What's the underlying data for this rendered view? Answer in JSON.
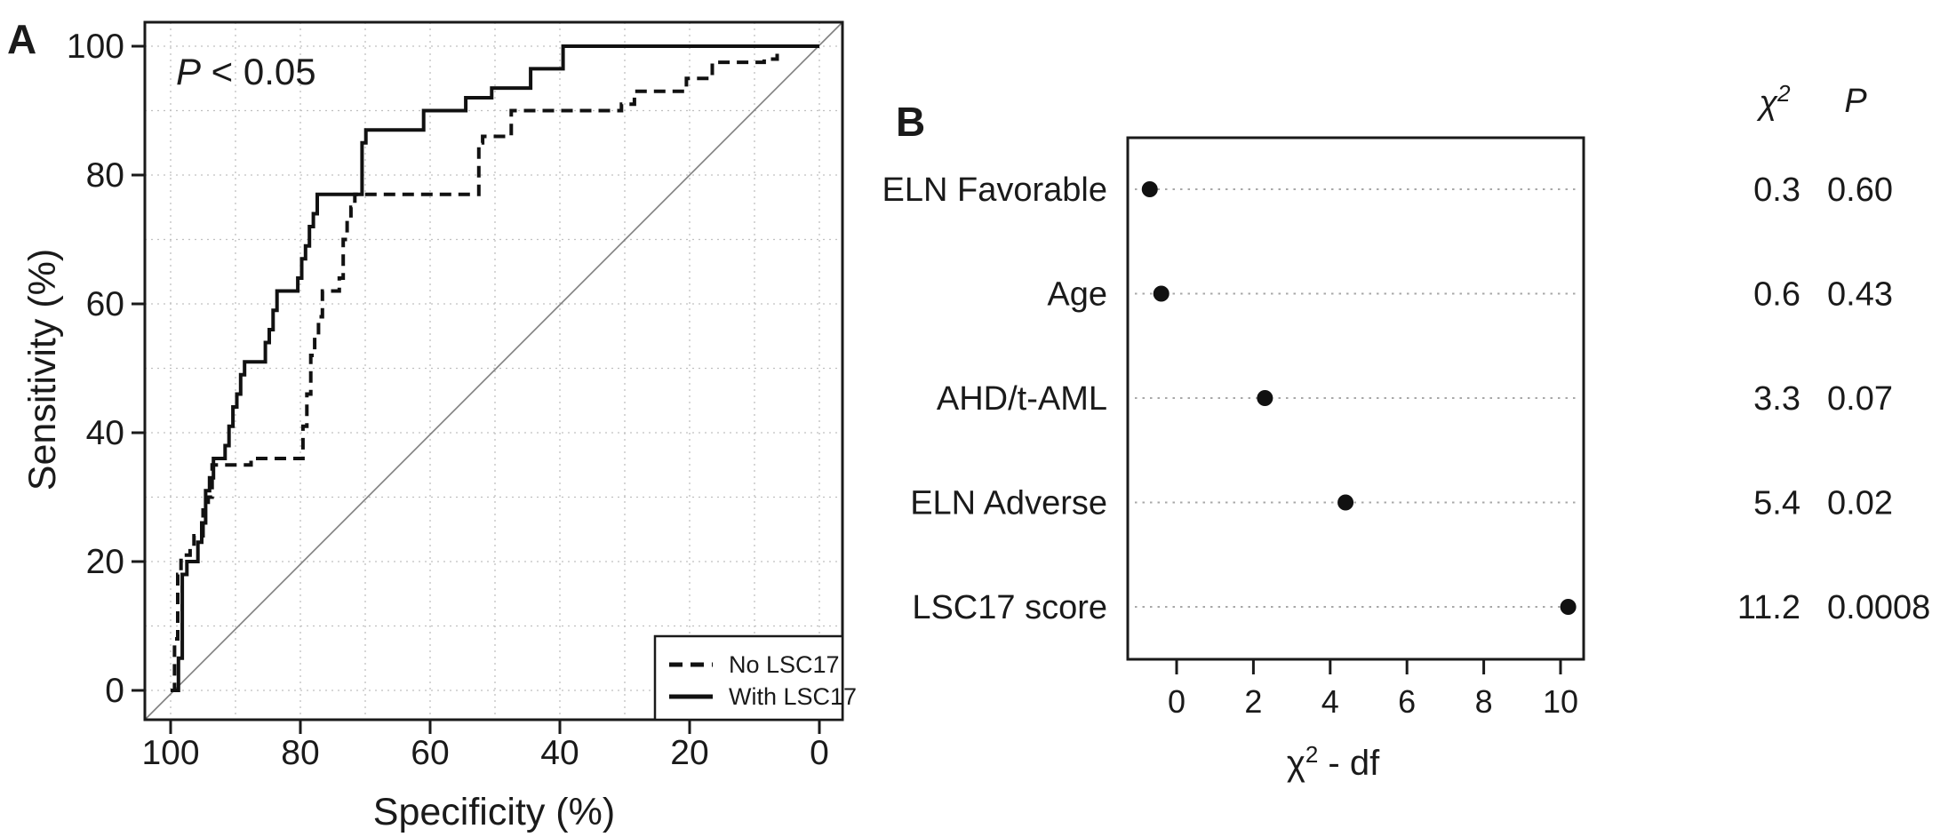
{
  "figure": {
    "background": "#ffffff",
    "panel_label_color": "#1f5b99",
    "text_color": "#1a1a1a",
    "panels": {
      "a": "A",
      "b": "B"
    }
  },
  "chart_data": [
    {
      "type": "line",
      "panel": "A",
      "subtype": "ROC step curves",
      "annotation_p": "P",
      "annotation_rest": " < 0.05",
      "annotation": "P < 0.05",
      "xlabel": "Specificity (%)",
      "ylabel": "Sensitivity (%)",
      "xlim": [
        100,
        0
      ],
      "ylim": [
        0,
        100
      ],
      "x_ticks": [
        100,
        80,
        60,
        40,
        20,
        0
      ],
      "y_ticks": [
        0,
        20,
        40,
        60,
        80,
        100
      ],
      "grid": "dotted every 10 units both axes",
      "reference_line": "diagonal chance line from (100,0) to (0,100)",
      "legend_position": "bottom-right",
      "series": [
        {
          "name": "No LSC17",
          "line_style": "dashed",
          "points": [
            [
              100,
              0
            ],
            [
              99.4,
              0
            ],
            [
              99.4,
              8
            ],
            [
              98.9,
              8
            ],
            [
              98.9,
              18
            ],
            [
              98.4,
              18
            ],
            [
              98.4,
              21
            ],
            [
              97,
              21
            ],
            [
              97,
              22
            ],
            [
              96.4,
              22
            ],
            [
              96.4,
              24
            ],
            [
              95,
              24
            ],
            [
              95,
              28
            ],
            [
              94.2,
              28
            ],
            [
              94.2,
              30
            ],
            [
              93.6,
              30
            ],
            [
              93.6,
              35
            ],
            [
              87.6,
              35
            ],
            [
              87.6,
              36
            ],
            [
              79.6,
              36
            ],
            [
              79.6,
              41
            ],
            [
              79,
              41
            ],
            [
              79,
              46
            ],
            [
              78.4,
              46
            ],
            [
              78.4,
              52
            ],
            [
              77.8,
              52
            ],
            [
              77.8,
              55
            ],
            [
              77.2,
              55
            ],
            [
              77.2,
              58
            ],
            [
              76.6,
              58
            ],
            [
              76.6,
              62
            ],
            [
              74,
              62
            ],
            [
              74,
              64
            ],
            [
              73.4,
              64
            ],
            [
              73.4,
              70
            ],
            [
              72.8,
              70
            ],
            [
              72.8,
              73
            ],
            [
              72.2,
              73
            ],
            [
              72.2,
              75
            ],
            [
              71.6,
              75
            ],
            [
              71.6,
              77
            ],
            [
              52.5,
              77
            ],
            [
              52.5,
              85
            ],
            [
              51.9,
              85
            ],
            [
              51.9,
              86
            ],
            [
              47.5,
              86
            ],
            [
              47.5,
              90
            ],
            [
              30.5,
              90
            ],
            [
              30.5,
              91
            ],
            [
              28.5,
              91
            ],
            [
              28.5,
              93
            ],
            [
              20.5,
              93
            ],
            [
              20.5,
              95
            ],
            [
              16.5,
              95
            ],
            [
              16.5,
              97.5
            ],
            [
              8.5,
              97.5
            ],
            [
              8.5,
              98
            ],
            [
              6.5,
              98
            ],
            [
              6.5,
              100
            ],
            [
              0,
              100
            ]
          ]
        },
        {
          "name": "With LSC17",
          "line_style": "solid",
          "points": [
            [
              100,
              0
            ],
            [
              98.8,
              0
            ],
            [
              98.8,
              5
            ],
            [
              98.2,
              5
            ],
            [
              98.2,
              18
            ],
            [
              97.5,
              18
            ],
            [
              97.5,
              20
            ],
            [
              95.8,
              20
            ],
            [
              95.8,
              23
            ],
            [
              95.2,
              23
            ],
            [
              95.2,
              26
            ],
            [
              94.6,
              26
            ],
            [
              94.6,
              31
            ],
            [
              94,
              31
            ],
            [
              94,
              33
            ],
            [
              93.4,
              33
            ],
            [
              93.4,
              36
            ],
            [
              91.6,
              36
            ],
            [
              91.6,
              38
            ],
            [
              91,
              38
            ],
            [
              91,
              41
            ],
            [
              90.4,
              41
            ],
            [
              90.4,
              44
            ],
            [
              89.8,
              44
            ],
            [
              89.8,
              46
            ],
            [
              89.2,
              46
            ],
            [
              89.2,
              49
            ],
            [
              88.6,
              49
            ],
            [
              88.6,
              51
            ],
            [
              85.4,
              51
            ],
            [
              85.4,
              54
            ],
            [
              84.8,
              54
            ],
            [
              84.8,
              56
            ],
            [
              84.2,
              56
            ],
            [
              84.2,
              59
            ],
            [
              83.6,
              59
            ],
            [
              83.6,
              62
            ],
            [
              80.4,
              62
            ],
            [
              80.4,
              64
            ],
            [
              79.8,
              64
            ],
            [
              79.8,
              67
            ],
            [
              79.2,
              67
            ],
            [
              79.2,
              69
            ],
            [
              78.6,
              69
            ],
            [
              78.6,
              72
            ],
            [
              78,
              72
            ],
            [
              78,
              74
            ],
            [
              77.4,
              74
            ],
            [
              77.4,
              77
            ],
            [
              70.5,
              77
            ],
            [
              70.5,
              85
            ],
            [
              69.9,
              85
            ],
            [
              69.9,
              87
            ],
            [
              61,
              87
            ],
            [
              61,
              90
            ],
            [
              54.5,
              90
            ],
            [
              54.5,
              92
            ],
            [
              50.5,
              92
            ],
            [
              50.5,
              93.5
            ],
            [
              44.5,
              93.5
            ],
            [
              44.5,
              96.5
            ],
            [
              39.5,
              96.5
            ],
            [
              39.5,
              100
            ],
            [
              0,
              100
            ]
          ]
        }
      ]
    },
    {
      "type": "scatter",
      "panel": "B",
      "subtype": "dot plot with value columns",
      "chi_symbol": "χ",
      "chi_sup": "2",
      "p_header": "P",
      "xlabel": "χ2 - df",
      "xlabel_rest": " - df",
      "xlim": [
        -1.3,
        10.6
      ],
      "x_ticks": [
        0,
        2,
        4,
        6,
        8,
        10
      ],
      "leader_style": "dotted gray leader line per row",
      "rows": [
        {
          "label": "ELN Favorable",
          "chi2_minus_df": -0.7,
          "chi2": "0.3",
          "p": "0.60"
        },
        {
          "label": "Age",
          "chi2_minus_df": -0.4,
          "chi2": "0.6",
          "p": "0.43"
        },
        {
          "label": "AHD/t-AML",
          "chi2_minus_df": 2.3,
          "chi2": "3.3",
          "p": "0.07"
        },
        {
          "label": "ELN Adverse",
          "chi2_minus_df": 4.4,
          "chi2": "5.4",
          "p": "0.02"
        },
        {
          "label": "LSC17 score",
          "chi2_minus_df": 10.2,
          "chi2": "11.2",
          "p": "0.0008"
        }
      ]
    }
  ]
}
